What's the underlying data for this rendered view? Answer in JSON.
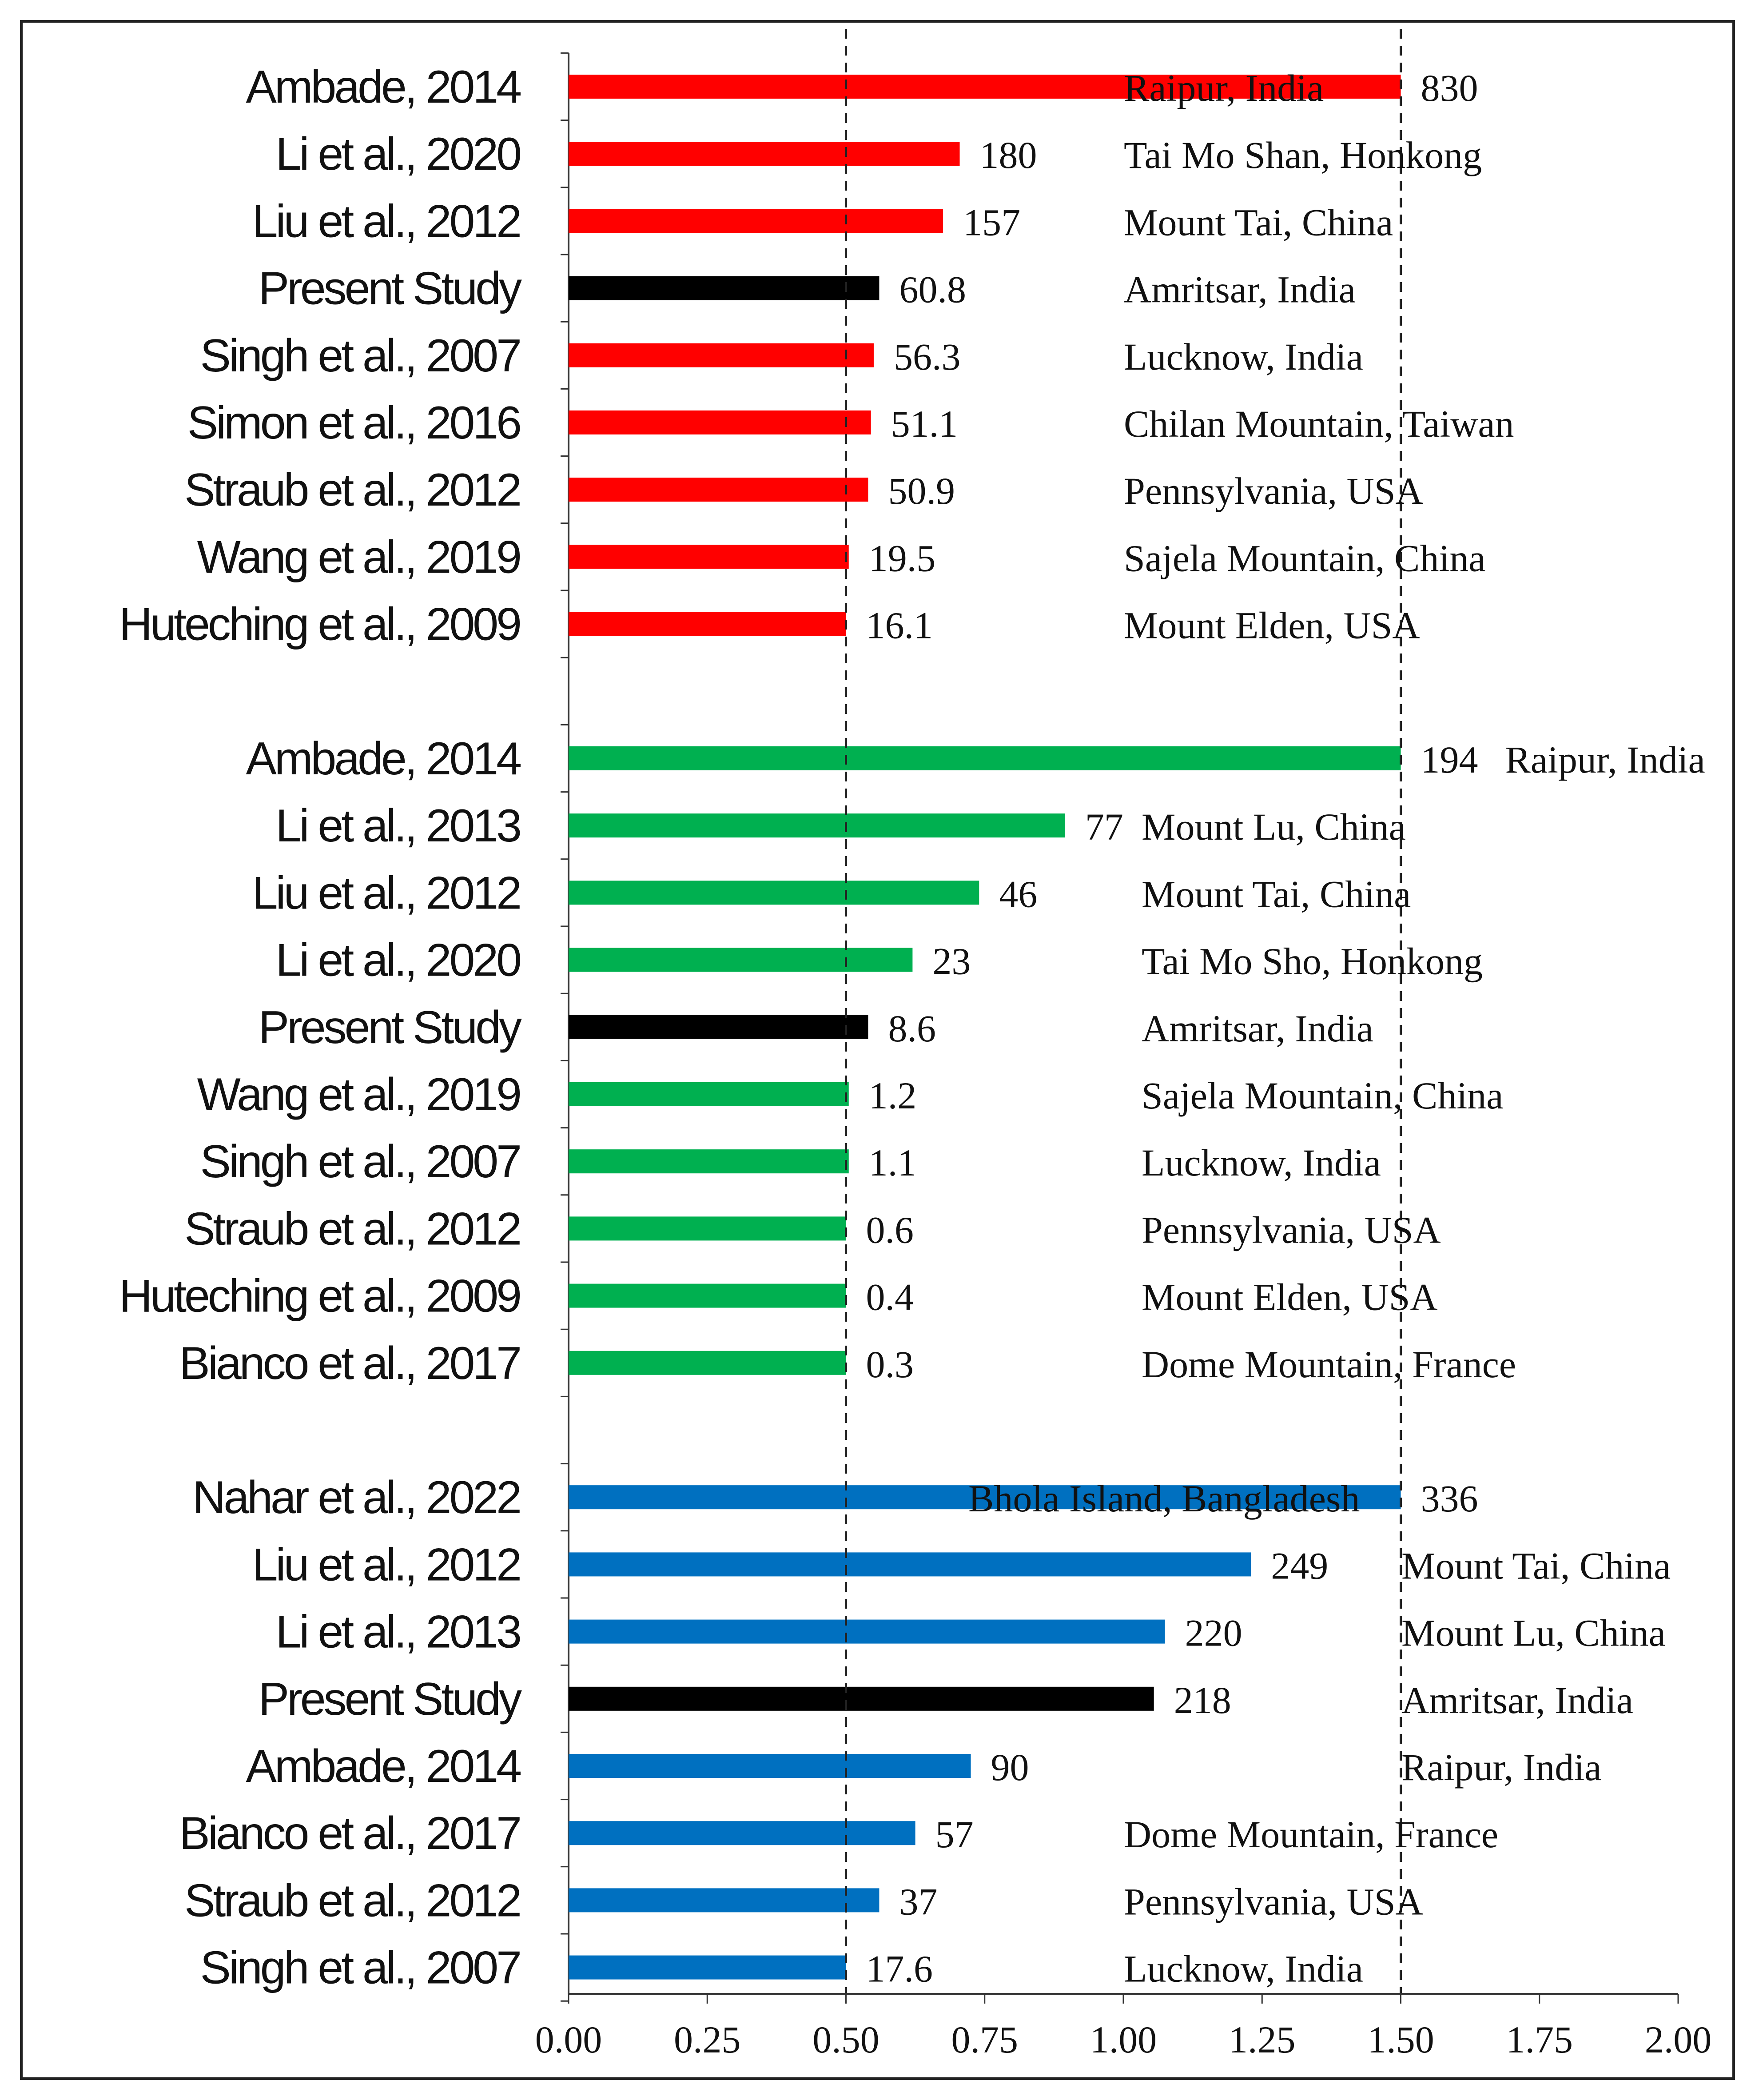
{
  "chart_data": {
    "type": "bar",
    "orientation": "horizontal",
    "title": "",
    "xlabel": "",
    "ylabel": "",
    "xlim": [
      0,
      2
    ],
    "xticks": [
      "0.00",
      "0.25",
      "0.50",
      "0.75",
      "1.00",
      "1.25",
      "1.50",
      "1.75",
      "2.00"
    ],
    "reference_lines": [
      0.5,
      1.5
    ],
    "colors": {
      "red": "#ff0000",
      "green": "#00b050",
      "blue": "#0070c0",
      "present": "#000000"
    },
    "groups": [
      {
        "name": "red",
        "bars": [
          {
            "study": "Ambade, 2014",
            "x": 1.5,
            "label": "830",
            "location": "Raipur, India",
            "present": false
          },
          {
            "study": "Li et al., 2020",
            "x": 0.705,
            "label": "180",
            "location": "Tai Mo Shan, Honkong",
            "present": false
          },
          {
            "study": "Liu et al., 2012",
            "x": 0.675,
            "label": "157",
            "location": "Mount Tai, China",
            "present": false
          },
          {
            "study": "Present Study",
            "x": 0.56,
            "label": "60.8",
            "location": "Amritsar, India",
            "present": true
          },
          {
            "study": "Singh et al., 2007",
            "x": 0.55,
            "label": "56.3",
            "location": "Lucknow, India",
            "present": false
          },
          {
            "study": "Simon et al., 2016",
            "x": 0.545,
            "label": "51.1",
            "location": "Chilan Mountain, Taiwan",
            "present": false
          },
          {
            "study": "Straub et al., 2012",
            "x": 0.54,
            "label": "50.9",
            "location": "Pennsylvania, USA",
            "present": false
          },
          {
            "study": "Wang et al., 2019",
            "x": 0.505,
            "label": "19.5",
            "location": "Sajela Mountain, China",
            "present": false
          },
          {
            "study": "Huteching et al., 2009",
            "x": 0.5,
            "label": "16.1",
            "location": "Mount Elden, USA",
            "present": false
          }
        ]
      },
      {
        "name": "green",
        "bars": [
          {
            "study": "Ambade, 2014",
            "x": 1.5,
            "label": "194",
            "location": "Raipur, India",
            "present": false
          },
          {
            "study": "Li et al., 2013",
            "x": 0.895,
            "label": "77",
            "location": "Mount Lu, China",
            "present": false
          },
          {
            "study": "Liu et al., 2012",
            "x": 0.74,
            "label": "46",
            "location": "Mount Tai, China",
            "present": false
          },
          {
            "study": "Li et al., 2020",
            "x": 0.62,
            "label": "23",
            "location": "Tai Mo Sho, Honkong",
            "present": false
          },
          {
            "study": "Present Study",
            "x": 0.54,
            "label": "8.6",
            "location": "Amritsar, India",
            "present": true
          },
          {
            "study": "Wang et al., 2019",
            "x": 0.505,
            "label": "1.2",
            "location": "Sajela Mountain,  China",
            "present": false
          },
          {
            "study": "Singh et al., 2007",
            "x": 0.505,
            "label": "1.1",
            "location": "Lucknow, India",
            "present": false
          },
          {
            "study": "Straub et al., 2012",
            "x": 0.5,
            "label": "0.6",
            "location": "Pennsylvania, USA",
            "present": false
          },
          {
            "study": "Huteching et al., 2009",
            "x": 0.5,
            "label": "0.4",
            "location": "Mount Elden, USA",
            "present": false
          },
          {
            "study": "Bianco et al., 2017",
            "x": 0.5,
            "label": "0.3",
            "location": "Dome Mountain, France",
            "present": false
          }
        ]
      },
      {
        "name": "blue",
        "bars": [
          {
            "study": "Nahar et al., 2022",
            "x": 1.5,
            "label": "336",
            "location": "Bhola Island, Bangladesh",
            "present": false
          },
          {
            "study": "Liu et al., 2012",
            "x": 1.23,
            "label": "249",
            "location": "Mount Tai, China",
            "present": false
          },
          {
            "study": "Li et al., 2013",
            "x": 1.075,
            "label": "220",
            "location": "Mount Lu, China",
            "present": false
          },
          {
            "study": "Present Study",
            "x": 1.055,
            "label": "218",
            "location": "Amritsar, India",
            "present": true
          },
          {
            "study": "Ambade, 2014",
            "x": 0.725,
            "label": "90",
            "location": "Raipur, India",
            "present": false
          },
          {
            "study": "Bianco et al., 2017",
            "x": 0.625,
            "label": "57",
            "location": "Dome Mountain, France",
            "present": false
          },
          {
            "study": "Straub et al., 2012",
            "x": 0.56,
            "label": "37",
            "location": "Pennsylvania, USA",
            "present": false
          },
          {
            "study": "Singh et al., 2007",
            "x": 0.5,
            "label": "17.6",
            "location": "Lucknow, India",
            "present": false
          }
        ]
      }
    ]
  }
}
